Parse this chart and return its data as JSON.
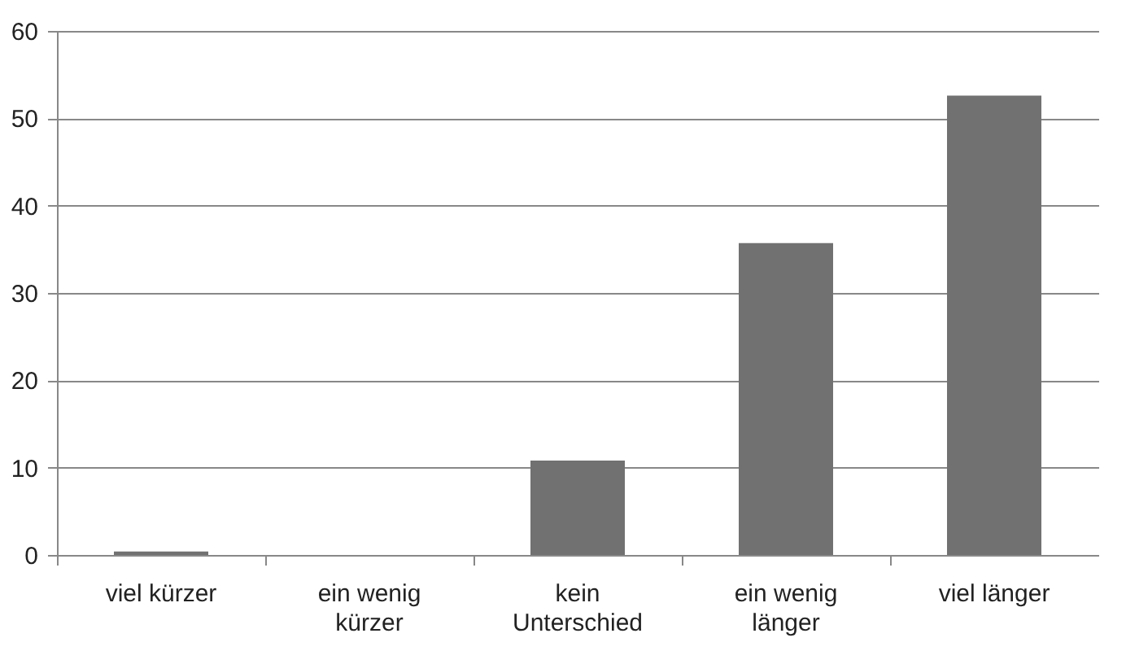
{
  "chart_data": {
    "type": "bar",
    "categories": [
      "viel kürzer",
      "ein wenig kürzer",
      "kein Unterschied",
      "ein wenig länger",
      "viel länger"
    ],
    "values": [
      0.4,
      0,
      10.8,
      35.7,
      52.6
    ],
    "color": "#717171",
    "ylim": [
      0,
      60
    ],
    "yticks": [
      0,
      10,
      20,
      30,
      40,
      50,
      60
    ],
    "grid": "y"
  }
}
